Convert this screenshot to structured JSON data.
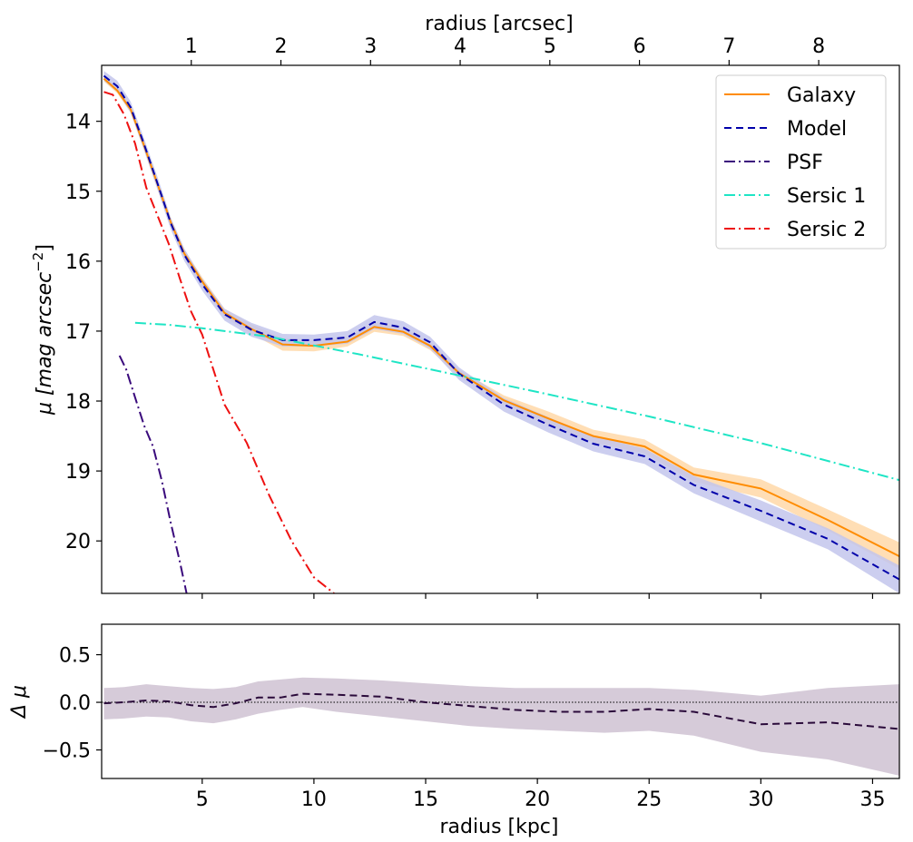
{
  "chart_data": [
    {
      "type": "line",
      "panel": "main",
      "xlabel": "",
      "x2label": "radius [arcsec]",
      "ylabel": "μ [mag arcsec⁻²]",
      "ylabel_parts": {
        "main": "μ [mag arcsec",
        "sup": "−2",
        "close": "]"
      },
      "xlim": [
        0.5,
        36.2
      ],
      "ylim": [
        20.75,
        13.2
      ],
      "x2lim": [
        0.0,
        8.9
      ],
      "yticks": [
        14,
        15,
        16,
        17,
        18,
        19,
        20
      ],
      "ytick_labels": [
        "14",
        "15",
        "16",
        "17",
        "18",
        "19",
        "20"
      ],
      "x2ticks": [
        1,
        2,
        3,
        4,
        5,
        6,
        7,
        8
      ],
      "x2tick_labels": [
        "1",
        "2",
        "3",
        "4",
        "5",
        "6",
        "7",
        "8"
      ],
      "xticks": [
        5,
        10,
        15,
        20,
        25,
        30,
        35
      ],
      "legend_position": "top-right",
      "bands": [
        {
          "name": "Galaxy band",
          "color": "#ffd8a8",
          "opacity": 0.85,
          "x": [
            0.6,
            1.2,
            1.8,
            2.4,
            3.0,
            3.6,
            4.2,
            5.0,
            6.0,
            7.2,
            8.6,
            10.0,
            11.5,
            12.7,
            14.0,
            15.2,
            16.5,
            18.5,
            20.5,
            22.5,
            24.8,
            27.0,
            30.0,
            33.0,
            36.2
          ],
          "upper": [
            13.43,
            13.6,
            13.88,
            14.4,
            14.95,
            15.5,
            15.95,
            16.35,
            16.8,
            17.04,
            17.28,
            17.29,
            17.22,
            17.01,
            17.07,
            17.27,
            17.65,
            18.06,
            18.35,
            18.59,
            18.75,
            19.15,
            19.38,
            19.85,
            20.4
          ],
          "lower": [
            13.35,
            13.52,
            13.78,
            14.3,
            14.85,
            15.4,
            15.83,
            16.23,
            16.68,
            16.9,
            17.1,
            17.13,
            17.08,
            16.87,
            16.95,
            17.15,
            17.55,
            17.92,
            18.15,
            18.41,
            18.55,
            18.95,
            19.12,
            19.55,
            20.02
          ]
        },
        {
          "name": "Model band",
          "color": "#c3c6ec",
          "opacity": 0.85,
          "x": [
            0.6,
            1.2,
            1.8,
            2.4,
            3.0,
            3.6,
            4.2,
            5.0,
            6.0,
            7.2,
            8.6,
            10.0,
            11.5,
            12.7,
            14.0,
            15.2,
            16.5,
            18.5,
            20.5,
            22.5,
            24.8,
            27.0,
            30.0,
            33.0,
            36.2
          ],
          "upper": [
            13.42,
            13.58,
            13.88,
            14.42,
            14.98,
            15.55,
            16.0,
            16.42,
            16.85,
            17.08,
            17.22,
            17.22,
            17.18,
            16.97,
            17.04,
            17.25,
            17.7,
            18.15,
            18.45,
            18.72,
            18.9,
            19.32,
            19.72,
            20.12,
            20.75
          ],
          "lower": [
            13.28,
            13.42,
            13.72,
            14.25,
            14.8,
            15.38,
            15.82,
            16.25,
            16.68,
            16.88,
            17.04,
            17.05,
            17.0,
            16.77,
            16.86,
            17.08,
            17.52,
            17.96,
            18.23,
            18.5,
            18.68,
            19.07,
            19.42,
            19.82,
            20.35
          ]
        }
      ],
      "series": [
        {
          "name": "Galaxy",
          "color": "#ff8c00",
          "dash": "",
          "x": [
            0.6,
            1.2,
            1.8,
            2.4,
            3.0,
            3.6,
            4.2,
            5.0,
            6.0,
            7.2,
            8.6,
            10.0,
            11.5,
            12.7,
            14.0,
            15.2,
            16.5,
            18.5,
            20.5,
            22.5,
            24.8,
            27.0,
            30.0,
            33.0,
            36.2
          ],
          "y": [
            13.39,
            13.56,
            13.83,
            14.35,
            14.9,
            15.45,
            15.89,
            16.29,
            16.74,
            16.97,
            17.19,
            17.21,
            17.15,
            16.94,
            17.01,
            17.21,
            17.6,
            17.99,
            18.25,
            18.5,
            18.65,
            19.05,
            19.25,
            19.7,
            20.22
          ]
        },
        {
          "name": "Model",
          "color": "#0000aa",
          "dash": "8,5",
          "x": [
            0.6,
            1.2,
            1.8,
            2.4,
            3.0,
            3.6,
            4.2,
            5.0,
            6.0,
            7.2,
            8.6,
            10.0,
            11.5,
            12.7,
            14.0,
            15.2,
            16.5,
            18.5,
            20.5,
            22.5,
            24.8,
            27.0,
            30.0,
            33.0,
            36.2
          ],
          "y": [
            13.35,
            13.5,
            13.8,
            14.33,
            14.89,
            15.46,
            15.91,
            16.33,
            16.76,
            16.98,
            17.13,
            17.13,
            17.09,
            16.87,
            16.95,
            17.16,
            17.61,
            18.05,
            18.34,
            18.61,
            18.79,
            19.2,
            19.57,
            19.97,
            20.55
          ]
        },
        {
          "name": "PSF",
          "color": "#3a0a7c",
          "dash": "12,4,2,4",
          "x": [
            1.3,
            1.6,
            2.0,
            2.4,
            2.8,
            3.2,
            3.6,
            4.0,
            4.3
          ],
          "y": [
            17.35,
            17.55,
            17.95,
            18.35,
            18.65,
            19.15,
            19.75,
            20.3,
            20.75
          ]
        },
        {
          "name": "Sersic 1",
          "color": "#1ee5c5",
          "dash": "12,4,2,4",
          "x": [
            2.0,
            3.5,
            5.0,
            8.0,
            12.0,
            16.0,
            20.0,
            25.0,
            30.0,
            36.2
          ],
          "y": [
            16.88,
            16.91,
            16.96,
            17.08,
            17.33,
            17.6,
            17.87,
            18.22,
            18.6,
            19.13
          ]
        },
        {
          "name": "Sersic 2",
          "color": "#ee1111",
          "dash": "12,4,2,4",
          "x": [
            0.6,
            1.0,
            1.5,
            2.0,
            2.5,
            3.0,
            3.5,
            4.0,
            4.5,
            5.0,
            5.5,
            6.0,
            7.0,
            8.0,
            9.0,
            10.0,
            10.9
          ],
          "y": [
            13.58,
            13.62,
            13.9,
            14.32,
            14.95,
            15.35,
            15.75,
            16.25,
            16.72,
            17.05,
            17.55,
            18.05,
            18.6,
            19.35,
            20.0,
            20.52,
            20.75
          ]
        }
      ],
      "legend": [
        "Galaxy",
        "Model",
        "PSF",
        "Sersic 1",
        "Sersic 2"
      ]
    },
    {
      "type": "line",
      "panel": "residual",
      "xlabel": "radius [kpc]",
      "ylabel": "Δ μ",
      "xlim": [
        0.5,
        36.2
      ],
      "ylim": [
        -0.8,
        0.82
      ],
      "xticks": [
        5,
        10,
        15,
        20,
        25,
        30,
        35
      ],
      "xtick_labels": [
        "5",
        "10",
        "15",
        "20",
        "25",
        "30",
        "35"
      ],
      "yticks": [
        0.5,
        0.0,
        -0.5
      ],
      "ytick_labels": [
        "0.5",
        "0.0",
        "−0.5"
      ],
      "reference_line": 0.0,
      "band": {
        "name": "Residual band",
        "color": "#d6cbd9",
        "x": [
          0.6,
          1.5,
          2.5,
          3.5,
          4.5,
          5.5,
          6.5,
          7.5,
          8.5,
          9.5,
          11,
          13,
          15,
          17,
          19,
          21,
          23,
          25,
          27,
          30,
          33,
          36.2
        ],
        "upper": [
          0.15,
          0.16,
          0.19,
          0.17,
          0.15,
          0.14,
          0.16,
          0.22,
          0.24,
          0.26,
          0.25,
          0.23,
          0.2,
          0.17,
          0.15,
          0.15,
          0.15,
          0.15,
          0.13,
          0.07,
          0.15,
          0.19
        ],
        "lower": [
          -0.18,
          -0.17,
          -0.15,
          -0.16,
          -0.2,
          -0.22,
          -0.18,
          -0.12,
          -0.08,
          -0.05,
          -0.1,
          -0.15,
          -0.2,
          -0.25,
          -0.28,
          -0.3,
          -0.32,
          -0.3,
          -0.35,
          -0.52,
          -0.6,
          -0.77
        ]
      },
      "series": [
        {
          "name": "Residual",
          "color": "#2a0a3a",
          "dash": "8,5",
          "x": [
            0.6,
            1.5,
            2.5,
            3.5,
            4.5,
            5.5,
            6.5,
            7.5,
            8.5,
            9.5,
            11,
            13,
            15,
            17,
            19,
            21,
            23,
            25,
            27,
            30,
            33,
            36.2
          ],
          "y": [
            -0.01,
            0.0,
            0.02,
            0.01,
            -0.03,
            -0.05,
            -0.01,
            0.05,
            0.05,
            0.09,
            0.08,
            0.06,
            0.0,
            -0.04,
            -0.08,
            -0.1,
            -0.1,
            -0.07,
            -0.1,
            -0.23,
            -0.21,
            -0.28
          ]
        }
      ]
    }
  ]
}
